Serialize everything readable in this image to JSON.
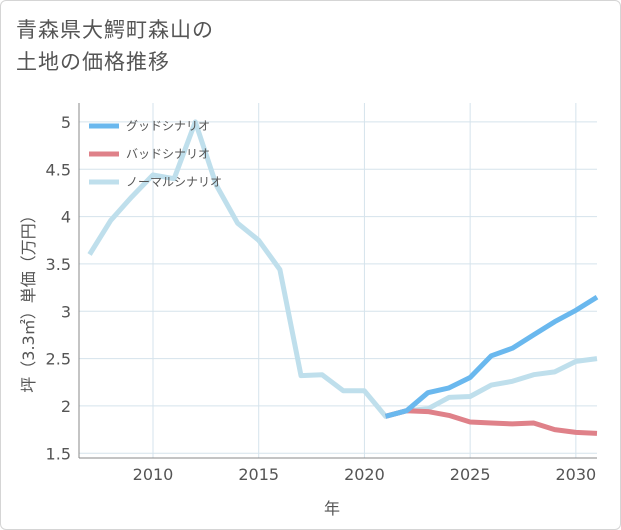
{
  "title_lines": [
    "青森県大鰐町森山の",
    "土地の価格推移"
  ],
  "colors": {
    "good": "#6ab8ee",
    "bad": "#df8189",
    "normal": "#bfdfec",
    "grid": "#d5e3ec",
    "axis": "#888888"
  },
  "chart_data": {
    "type": "line",
    "title": "青森県大鰐町森山の土地の価格推移",
    "xlabel": "年",
    "ylabel": "坪（3.3㎡）単価（万円）",
    "xlim": [
      2006.5,
      2031
    ],
    "ylim": [
      1.45,
      5.2
    ],
    "xticks": [
      2010,
      2015,
      2020,
      2025,
      2030
    ],
    "xtick_labels": [
      "2010",
      "2015",
      "2020",
      "2025",
      "2030"
    ],
    "yticks": [
      1.5,
      2,
      2.5,
      3,
      3.5,
      4,
      4.5,
      5
    ],
    "ytick_labels": [
      "1.5",
      "2",
      "2.5",
      "3",
      "3.5",
      "4",
      "4.5",
      "5"
    ],
    "grid": true,
    "legend_position": "top-left",
    "series": [
      {
        "name": "グッドシナリオ",
        "color_key": "good",
        "x": [
          2021,
          2022,
          2023,
          2024,
          2025,
          2026,
          2027,
          2028,
          2029,
          2030,
          2031
        ],
        "y": [
          1.89,
          1.95,
          2.14,
          2.19,
          2.3,
          2.53,
          2.61,
          2.75,
          2.89,
          3.01,
          3.15
        ]
      },
      {
        "name": "バッドシナリオ",
        "color_key": "bad",
        "x": [
          2021,
          2022,
          2023,
          2024,
          2025,
          2026,
          2027,
          2028,
          2029,
          2030,
          2031
        ],
        "y": [
          1.89,
          1.95,
          1.94,
          1.9,
          1.83,
          1.82,
          1.81,
          1.82,
          1.75,
          1.72,
          1.71
        ]
      },
      {
        "name": "ノーマルシナリオ",
        "color_key": "normal",
        "x": [
          2007,
          2008,
          2009,
          2010,
          2011,
          2012,
          2013,
          2014,
          2015,
          2016,
          2017,
          2018,
          2019,
          2020,
          2021,
          2022,
          2023,
          2024,
          2025,
          2026,
          2027,
          2028,
          2029,
          2030,
          2031
        ],
        "y": [
          3.6,
          3.96,
          4.21,
          4.44,
          4.4,
          5.0,
          4.33,
          3.93,
          3.75,
          3.44,
          2.32,
          2.33,
          2.16,
          2.16,
          1.89,
          1.95,
          1.97,
          2.09,
          2.1,
          2.22,
          2.26,
          2.33,
          2.36,
          2.47,
          2.5
        ]
      }
    ]
  }
}
